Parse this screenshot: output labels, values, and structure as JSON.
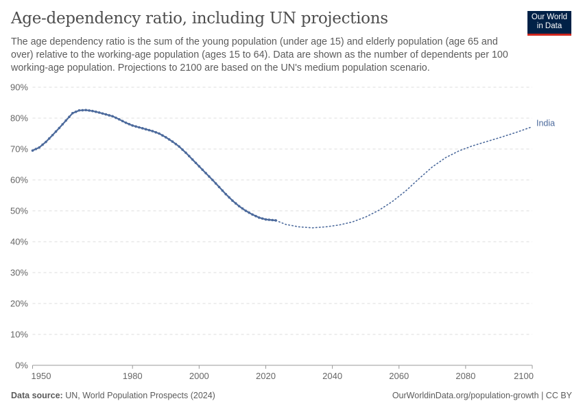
{
  "header": {
    "title": "Age-dependency ratio, including UN projections",
    "subtitle": "The age dependency ratio is the sum of the young population (under age 15) and elderly population (age 65 and over) relative to the working-age population (ages 15 to 64). Data are shown as the number of dependents per 100 working-age population. Projections to 2100 are based on the UN's medium population scenario.",
    "logo": "Our World in Data"
  },
  "footer": {
    "source_label": "Data source:",
    "source": "UN, World Population Prospects (2024)",
    "license": "OurWorldinData.org/population-growth | CC BY"
  },
  "colors": {
    "series": "#4c6a9c",
    "grid": "#dddddd",
    "axis": "#999999"
  },
  "chart_data": {
    "type": "line",
    "title": "Age-dependency ratio, including UN projections",
    "xlim": [
      1950,
      2100
    ],
    "ylim": [
      0,
      90
    ],
    "x_ticks": [
      "1950",
      "1980",
      "2000",
      "2020",
      "2040",
      "2060",
      "2080",
      "2100"
    ],
    "y_ticks": [
      "0%",
      "10%",
      "20%",
      "30%",
      "40%",
      "50%",
      "60%",
      "70%",
      "80%",
      "90%"
    ],
    "grid": "horizontal dashed",
    "series": [
      {
        "name": "India",
        "label_position": "line end",
        "historical": [
          [
            1950,
            69.5
          ],
          [
            1952,
            70.5
          ],
          [
            1954,
            72.3
          ],
          [
            1956,
            74.5
          ],
          [
            1958,
            76.8
          ],
          [
            1960,
            79.2
          ],
          [
            1962,
            81.6
          ],
          [
            1964,
            82.5
          ],
          [
            1966,
            82.6
          ],
          [
            1968,
            82.3
          ],
          [
            1970,
            81.8
          ],
          [
            1972,
            81.2
          ],
          [
            1974,
            80.6
          ],
          [
            1976,
            79.6
          ],
          [
            1978,
            78.5
          ],
          [
            1980,
            77.6
          ],
          [
            1982,
            77
          ],
          [
            1984,
            76.4
          ],
          [
            1986,
            75.8
          ],
          [
            1988,
            75
          ],
          [
            1990,
            73.8
          ],
          [
            1992,
            72.4
          ],
          [
            1994,
            70.8
          ],
          [
            1996,
            68.8
          ],
          [
            1998,
            66.6
          ],
          [
            2000,
            64.4
          ],
          [
            2002,
            62.2
          ],
          [
            2004,
            60
          ],
          [
            2006,
            57.7
          ],
          [
            2008,
            55.4
          ],
          [
            2010,
            53.3
          ],
          [
            2012,
            51.5
          ],
          [
            2014,
            50
          ],
          [
            2016,
            48.8
          ],
          [
            2018,
            47.8
          ],
          [
            2020,
            47.2
          ],
          [
            2023,
            46.9
          ]
        ],
        "projected": [
          [
            2023,
            46.9
          ],
          [
            2026,
            45.6
          ],
          [
            2030,
            44.8
          ],
          [
            2034,
            44.5
          ],
          [
            2038,
            44.8
          ],
          [
            2042,
            45.4
          ],
          [
            2046,
            46.4
          ],
          [
            2050,
            48
          ],
          [
            2054,
            50.2
          ],
          [
            2058,
            53
          ],
          [
            2062,
            56.4
          ],
          [
            2066,
            60.4
          ],
          [
            2070,
            64.2
          ],
          [
            2074,
            67.2
          ],
          [
            2078,
            69.4
          ],
          [
            2082,
            71
          ],
          [
            2086,
            72.3
          ],
          [
            2090,
            73.6
          ],
          [
            2095,
            75.3
          ],
          [
            2100,
            77.2
          ]
        ]
      }
    ]
  }
}
